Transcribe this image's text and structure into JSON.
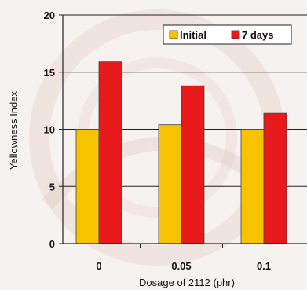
{
  "chart_data": {
    "type": "bar",
    "title": "",
    "xlabel": "Dosage of  2112  (phr)",
    "ylabel": "Yellowness Index",
    "categories": [
      "0",
      "0.05",
      "0.1"
    ],
    "series": [
      {
        "name": "Initial",
        "values": [
          10.0,
          10.4,
          10.0
        ],
        "color": "#f7c200"
      },
      {
        "name": "7 days",
        "values": [
          15.9,
          13.8,
          11.4
        ],
        "color": "#e8191b"
      }
    ],
    "ylim": [
      0,
      20
    ],
    "yticks": [
      "0",
      "5",
      "10",
      "15",
      "20"
    ],
    "grid": true,
    "legend": "top-right"
  }
}
